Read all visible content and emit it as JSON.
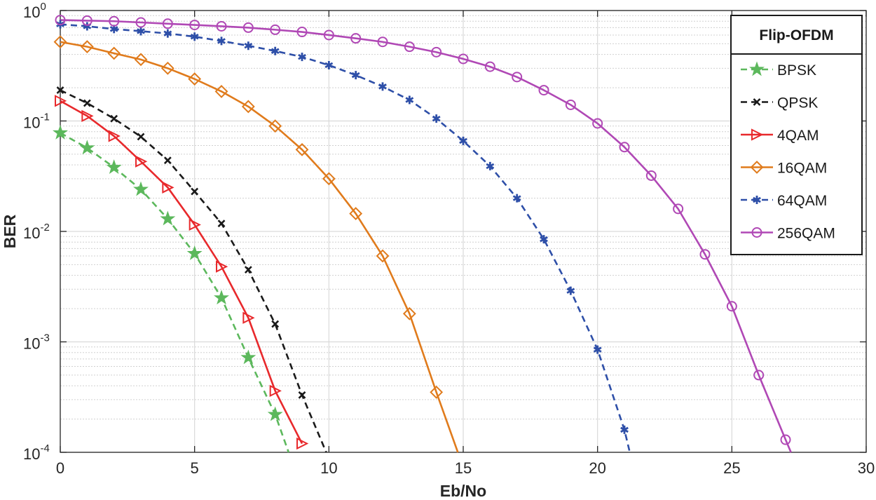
{
  "chart_data": {
    "type": "line",
    "title": "",
    "xlabel": "Eb/No",
    "ylabel": "BER",
    "xlim": [
      0,
      30
    ],
    "ylim": [
      0.0001,
      1
    ],
    "yscale": "log",
    "xticks": [
      "0",
      "5",
      "10",
      "15",
      "20",
      "25",
      "30"
    ],
    "yticks": [
      {
        "base": "10",
        "exp": "-4"
      },
      {
        "base": "10",
        "exp": "-3"
      },
      {
        "base": "10",
        "exp": "-2"
      },
      {
        "base": "10",
        "exp": "-1"
      },
      {
        "base": "10",
        "exp": "0"
      }
    ],
    "grid": true,
    "legend": {
      "title": "Flip-OFDM",
      "location": "top-right"
    },
    "series": [
      {
        "name": "BPSK",
        "color": "#5cb85c",
        "line_style": "dashed",
        "marker": "star",
        "x": [
          0,
          1,
          2,
          3,
          4,
          5,
          6,
          7,
          8,
          8.5
        ],
        "y": [
          0.078,
          0.057,
          0.038,
          0.024,
          0.013,
          0.0063,
          0.0025,
          0.00072,
          0.00022,
          0.0001
        ],
        "marker_count": 9
      },
      {
        "name": "QPSK",
        "color": "#1a1a1a",
        "line_style": "dashed",
        "marker": "x",
        "x": [
          0,
          1,
          2,
          3,
          4,
          5,
          6,
          7,
          8,
          9,
          9.9
        ],
        "y": [
          0.19,
          0.145,
          0.105,
          0.072,
          0.044,
          0.023,
          0.0118,
          0.0045,
          0.00145,
          0.00033,
          0.0001
        ],
        "marker_count": 10
      },
      {
        "name": "4QAM",
        "color": "#e8292c",
        "line_style": "solid",
        "marker": "triangle-right",
        "x": [
          0,
          1,
          2,
          3,
          4,
          5,
          6,
          7,
          8,
          9
        ],
        "y": [
          0.152,
          0.111,
          0.073,
          0.043,
          0.025,
          0.0115,
          0.0048,
          0.00165,
          0.00036,
          0.00012
        ],
        "marker_count": 10
      },
      {
        "name": "16QAM",
        "color": "#e07b1c",
        "line_style": "solid",
        "marker": "diamond",
        "x": [
          0,
          1,
          2,
          3,
          4,
          5,
          6,
          7,
          8,
          9,
          10,
          11,
          12,
          13,
          14,
          14.8
        ],
        "y": [
          0.52,
          0.47,
          0.41,
          0.36,
          0.3,
          0.24,
          0.185,
          0.135,
          0.09,
          0.055,
          0.03,
          0.0145,
          0.006,
          0.0018,
          0.00035,
          0.0001
        ],
        "marker_count": 15
      },
      {
        "name": "64QAM",
        "color": "#2e4fa8",
        "line_style": "dashed",
        "marker": "asterisk",
        "x": [
          0,
          1,
          2,
          3,
          4,
          5,
          6,
          7,
          8,
          9,
          10,
          11,
          12,
          13,
          14,
          15,
          16,
          17,
          18,
          19,
          20,
          21,
          21.2
        ],
        "y": [
          0.75,
          0.72,
          0.68,
          0.65,
          0.62,
          0.58,
          0.53,
          0.48,
          0.43,
          0.38,
          0.32,
          0.26,
          0.205,
          0.155,
          0.105,
          0.066,
          0.039,
          0.02,
          0.0085,
          0.0029,
          0.00085,
          0.00016,
          0.0001
        ],
        "marker_count": 22
      },
      {
        "name": "256QAM",
        "color": "#b048b5",
        "line_style": "solid",
        "marker": "circle",
        "x": [
          0,
          1,
          2,
          3,
          4,
          5,
          6,
          7,
          8,
          9,
          10,
          11,
          12,
          13,
          14,
          15,
          16,
          17,
          18,
          19,
          20,
          21,
          22,
          23,
          24,
          25,
          26,
          27,
          27.2
        ],
        "y": [
          0.82,
          0.81,
          0.8,
          0.78,
          0.76,
          0.74,
          0.72,
          0.7,
          0.67,
          0.64,
          0.6,
          0.56,
          0.52,
          0.47,
          0.42,
          0.365,
          0.31,
          0.25,
          0.19,
          0.14,
          0.095,
          0.058,
          0.032,
          0.016,
          0.0062,
          0.0021,
          0.0005,
          0.00013,
          0.0001
        ],
        "marker_count": 28
      }
    ]
  }
}
